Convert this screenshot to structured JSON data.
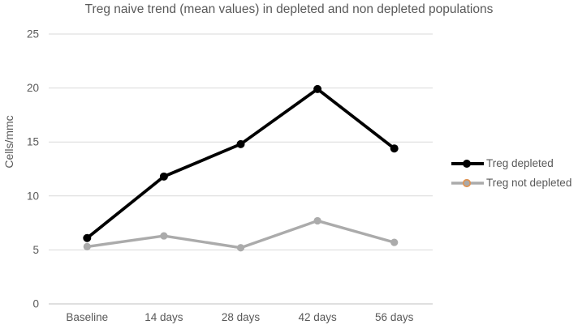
{
  "title": "Treg naive trend (mean values) in depleted and non depleted populations",
  "y_axis": {
    "label": "Cells/mmc",
    "ticks": [
      25,
      20,
      15,
      10,
      5,
      0
    ]
  },
  "x_axis": {
    "categories": [
      "Baseline",
      "14 days",
      "28 days",
      "42 days",
      "56 days"
    ]
  },
  "legend": {
    "items": [
      {
        "label": "Treg depleted",
        "marker": "filled-circle",
        "line_color": "#000000",
        "marker_fill": "#000000",
        "marker_ring": "none"
      },
      {
        "label": "Treg not depleted",
        "marker": "ring-circle",
        "line_color": "#ABABAB",
        "marker_fill": "#A9A9A9",
        "marker_ring": "#DE9455"
      }
    ]
  },
  "colors": {
    "gridline": "#D9D9D9",
    "axis_line": "#BFBFBF",
    "text": "#595959",
    "series_black": "#000000",
    "series_gray": "#ABABAB",
    "legend_ring_orange": "#DE9455"
  },
  "chart_data": {
    "type": "line",
    "title": "Treg naive trend (mean values) in depleted and non depleted populations",
    "xlabel": "",
    "ylabel": "Cells/mmc",
    "ylim": [
      0,
      25
    ],
    "grid": true,
    "legend_position": "right",
    "categories": [
      "Baseline",
      "14 days",
      "28 days",
      "42 days",
      "56 days"
    ],
    "series": [
      {
        "name": "Treg depleted",
        "color": "#000000",
        "values": [
          6.1,
          11.8,
          14.8,
          19.9,
          14.4
        ]
      },
      {
        "name": "Treg not depleted",
        "color": "#ABABAB",
        "values": [
          5.3,
          6.3,
          5.2,
          7.7,
          5.7
        ]
      }
    ]
  }
}
